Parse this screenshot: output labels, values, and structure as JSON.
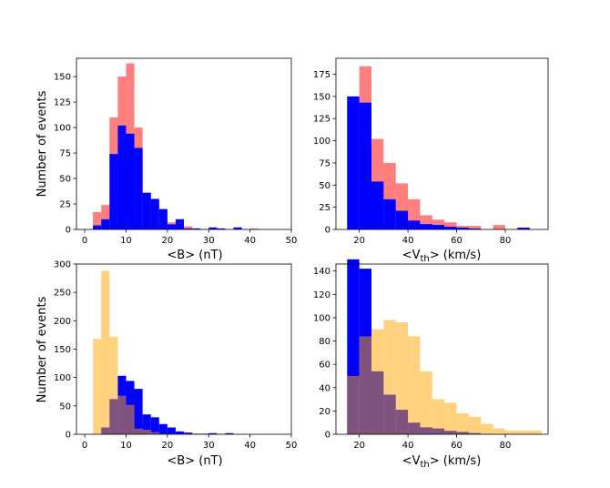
{
  "chart_data": [
    {
      "type": "histogram",
      "position": "top-left",
      "xlabel": "<B> (nT)",
      "ylabel": "Number of events",
      "xlim": [
        -2,
        50
      ],
      "ylim": [
        0,
        168
      ],
      "xticks": [
        0,
        10,
        20,
        30,
        40,
        50
      ],
      "yticks": [
        0,
        25,
        50,
        75,
        100,
        125,
        150
      ],
      "bin_edges": [
        2,
        4,
        6,
        8,
        10,
        12,
        14,
        16,
        18,
        20,
        22,
        24,
        26,
        28,
        30,
        32,
        34,
        36,
        38,
        40,
        42,
        44
      ],
      "series": [
        {
          "name": "red",
          "color": "#ff0000",
          "alpha": 0.5,
          "values": [
            17,
            24,
            110,
            150,
            163,
            100,
            36,
            28,
            15,
            7,
            4,
            3,
            1,
            0,
            1,
            0,
            0,
            0,
            0,
            1,
            0
          ]
        },
        {
          "name": "blue",
          "color": "#0000ff",
          "alpha": 1.0,
          "values": [
            4,
            10,
            74,
            102,
            94,
            80,
            36,
            30,
            20,
            5,
            10,
            1,
            1,
            0,
            2,
            1,
            0,
            2,
            0,
            0,
            0
          ]
        }
      ]
    },
    {
      "type": "histogram",
      "position": "top-right",
      "xlabel": "<V_th> (km/s)",
      "ylabel": "",
      "xlim": [
        10.4,
        97.6
      ],
      "ylim": [
        0,
        193
      ],
      "xticks": [
        20,
        40,
        60,
        80
      ],
      "yticks": [
        0,
        25,
        50,
        75,
        100,
        125,
        150,
        175
      ],
      "bin_edges": [
        15,
        20,
        25,
        30,
        35,
        40,
        45,
        50,
        55,
        60,
        65,
        70,
        75,
        80,
        85,
        90,
        95
      ],
      "series": [
        {
          "name": "red",
          "color": "#ff0000",
          "alpha": 0.5,
          "values": [
            145,
            184,
            102,
            75,
            52,
            34,
            16,
            11,
            8,
            4,
            4,
            0,
            5,
            0,
            0,
            0
          ]
        },
        {
          "name": "blue",
          "color": "#0000ff",
          "alpha": 1.0,
          "values": [
            150,
            143,
            54,
            34,
            21,
            10,
            6,
            5,
            3,
            2,
            1,
            0,
            0,
            0,
            2,
            0
          ]
        }
      ]
    },
    {
      "type": "histogram",
      "position": "bottom-left",
      "xlabel": "<B> (nT)",
      "ylabel": "Number of events",
      "xlim": [
        -2,
        50
      ],
      "ylim": [
        0,
        300
      ],
      "xticks": [
        0,
        10,
        20,
        30,
        40,
        50
      ],
      "yticks": [
        0,
        50,
        100,
        150,
        200,
        250,
        300
      ],
      "bin_edges": [
        2,
        4,
        6,
        8,
        10,
        12,
        14,
        16,
        18,
        20,
        22,
        24,
        26,
        28,
        30,
        32,
        34,
        36,
        38
      ],
      "series": [
        {
          "name": "blue",
          "color": "#0000ff",
          "alpha": 1.0,
          "values": [
            0,
            12,
            62,
            103,
            94,
            80,
            35,
            30,
            18,
            12,
            5,
            3,
            1,
            1,
            2,
            0,
            2,
            0
          ]
        },
        {
          "name": "orange",
          "color": "#ffa500",
          "alpha": 0.5,
          "values": [
            168,
            288,
            172,
            68,
            52,
            10,
            8,
            4,
            1,
            1,
            0,
            1,
            0,
            0,
            0,
            1,
            0,
            0
          ]
        }
      ]
    },
    {
      "type": "histogram",
      "position": "bottom-right",
      "xlabel": "<V_th> (km/s)",
      "ylabel": "",
      "xlim": [
        10.4,
        97.6
      ],
      "ylim": [
        0,
        146
      ],
      "xticks": [
        20,
        40,
        60,
        80
      ],
      "yticks": [
        0,
        20,
        40,
        60,
        80,
        100,
        120,
        140
      ],
      "bin_edges": [
        15,
        20,
        25,
        30,
        35,
        40,
        45,
        50,
        55,
        60,
        65,
        70,
        75,
        80,
        85,
        90,
        95
      ],
      "series": [
        {
          "name": "blue",
          "color": "#0000ff",
          "alpha": 1.0,
          "values": [
            150,
            142,
            54,
            34,
            21,
            10,
            6,
            5,
            3,
            2,
            1,
            0,
            0,
            0,
            0,
            0
          ]
        },
        {
          "name": "orange",
          "color": "#ffa500",
          "alpha": 0.5,
          "values": [
            50,
            84,
            90,
            98,
            96,
            84,
            54,
            30,
            27,
            18,
            15,
            9,
            5,
            3,
            3,
            3
          ]
        }
      ]
    }
  ]
}
